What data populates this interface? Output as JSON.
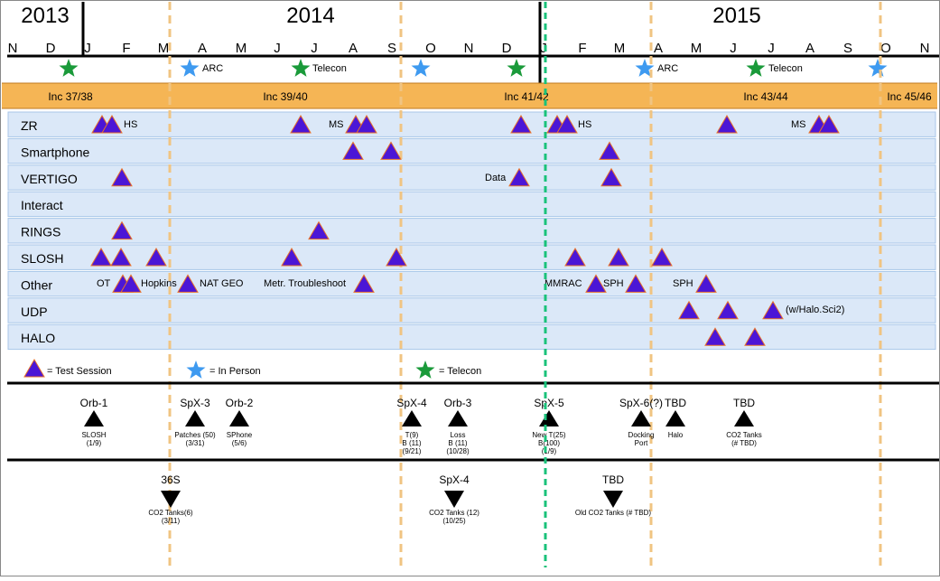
{
  "years": [
    "2013",
    "2014",
    "2015"
  ],
  "months": [
    "N",
    "D",
    "J",
    "F",
    "M",
    "A",
    "M",
    "J",
    "J",
    "A",
    "S",
    "O",
    "N",
    "D",
    "J",
    "F",
    "M",
    "A",
    "M",
    "J",
    "J",
    "A",
    "S",
    "O",
    "N"
  ],
  "meetings": {
    "arc_1": "ARC",
    "telecon_1": "Telecon",
    "arc_2": "ARC",
    "telecon_2": "Telecon"
  },
  "increments": [
    "Inc 37/38",
    "Inc 39/40",
    "Inc 41/42",
    "Inc 43/44",
    "Inc 45/46"
  ],
  "rows": [
    "ZR",
    "Smartphone",
    "VERTIGO",
    "Interact",
    "RINGS",
    "SLOSH",
    "Other",
    "UDP",
    "HALO"
  ],
  "session_labels": {
    "zr_hs_1": "HS",
    "zr_ms_1": "MS",
    "zr_hs_2": "HS",
    "zr_ms_2": "MS",
    "vertigo_data": "Data",
    "other_ot": "OT",
    "other_hopkins": "Hopkins",
    "other_natgeo": "NAT GEO",
    "other_metr": "Metr. Troubleshoot",
    "other_mmrac": "MMRAC",
    "other_sph_1": "SPH",
    "other_sph_2": "SPH",
    "udp_note": "(w/Halo.Sci2)"
  },
  "legend": {
    "test_session": "= Test Session",
    "in_person": "= In Person",
    "telecon": "= Telecon"
  },
  "launches_up": [
    {
      "name": "Orb-1",
      "l1": "SLOSH",
      "l2": "(1/9)",
      "l3": ""
    },
    {
      "name": "SpX-3",
      "l1": "Patches (50)",
      "l2": "(3/31)",
      "l3": ""
    },
    {
      "name": "Orb-2",
      "l1": "SPhone",
      "l2": "(5/6)",
      "l3": ""
    },
    {
      "name": "SpX-4",
      "l1": "T(9)",
      "l2": "B (11)",
      "l3": "(9/21)"
    },
    {
      "name": "Orb-3",
      "l1": "Loss",
      "l2": "B (11)",
      "l3": "(10/28)"
    },
    {
      "name": "SpX-5",
      "l1": "New T(25)",
      "l2": "B(100)",
      "l3": "(1/9)"
    },
    {
      "name": "SpX-6(?)",
      "l1": "Docking",
      "l2": "Port",
      "l3": ""
    },
    {
      "name": "TBD",
      "l1": "Halo",
      "l2": "",
      "l3": ""
    },
    {
      "name": "TBD",
      "l1": "CO2 Tanks",
      "l2": "(# TBD)",
      "l3": ""
    }
  ],
  "launches_down": [
    {
      "name": "36S",
      "l1": "CO2 Tanks(6)",
      "l2": "(3/11)"
    },
    {
      "name": "SpX-4",
      "l1": "CO2 Tanks (12)",
      "l2": "(10/25)"
    },
    {
      "name": "TBD",
      "l1": "Old CO2 Tanks (# TBD)",
      "l2": ""
    }
  ],
  "colors": {
    "session_fill": "#4b16d6",
    "session_stroke": "#e8702a",
    "row_fill": "#dbe8f8",
    "row_stroke": "#a8c6e8",
    "increment_band": "#f5b555",
    "dashed_quarter": "#f0c482",
    "today_line": "#19c27a",
    "star_in_person": "#3e9af0",
    "star_telecon": "#1a9a3a"
  }
}
